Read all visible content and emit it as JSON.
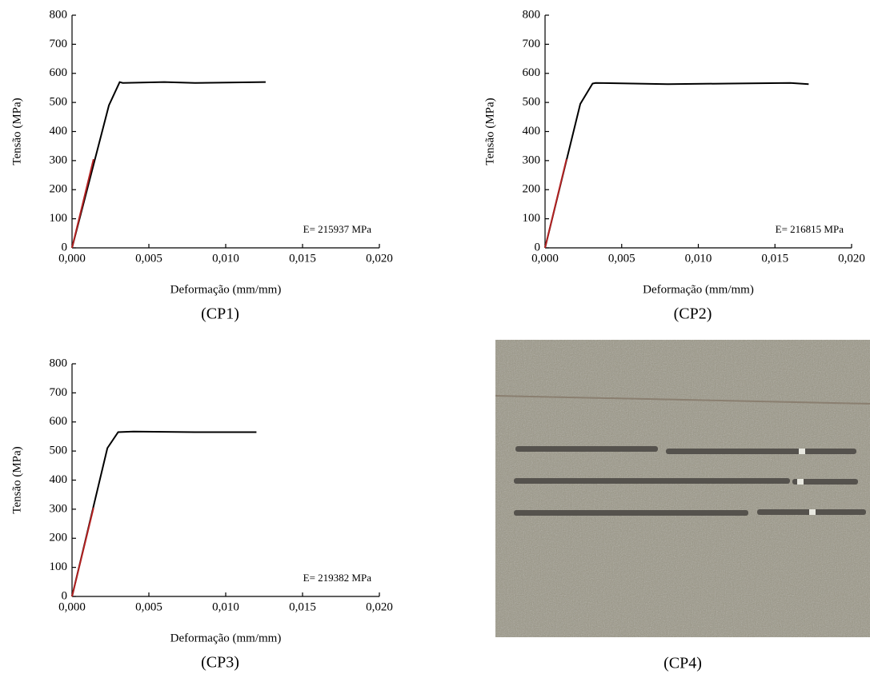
{
  "chart_data": [
    {
      "type": "line",
      "caption": "(CP1)",
      "xlabel": "Deformação (mm/mm)",
      "ylabel": "Tensão (MPa)",
      "annotation": "E= 215937 MPa",
      "xlim": [
        0,
        0.02
      ],
      "ylim": [
        0,
        800
      ],
      "xticks": [
        {
          "value": 0,
          "label": "0,000"
        },
        {
          "value": 0.005,
          "label": "0,005"
        },
        {
          "value": 0.01,
          "label": "0,010"
        },
        {
          "value": 0.015,
          "label": "0,015"
        },
        {
          "value": 0.02,
          "label": "0,020"
        }
      ],
      "yticks": [
        0,
        100,
        200,
        300,
        400,
        500,
        600,
        700,
        800
      ],
      "series": [
        {
          "color": "#000000",
          "x": [
            0,
            0.0024,
            0.0031,
            0.0033,
            0.006,
            0.008,
            0.0126
          ],
          "values": [
            0,
            490,
            570,
            567,
            570,
            567,
            570
          ]
        },
        {
          "color": "#b22222",
          "x": [
            0,
            0.0014
          ],
          "values": [
            0,
            305
          ]
        }
      ]
    },
    {
      "type": "line",
      "caption": "(CP2)",
      "xlabel": "Deformação (mm/mm)",
      "ylabel": "Tensão (MPa)",
      "annotation": "E= 216815 MPa",
      "xlim": [
        0,
        0.02
      ],
      "ylim": [
        0,
        800
      ],
      "xticks": [
        {
          "value": 0,
          "label": "0,000"
        },
        {
          "value": 0.005,
          "label": "0,005"
        },
        {
          "value": 0.01,
          "label": "0,010"
        },
        {
          "value": 0.015,
          "label": "0,015"
        },
        {
          "value": 0.02,
          "label": "0,020"
        }
      ],
      "yticks": [
        0,
        100,
        200,
        300,
        400,
        500,
        600,
        700,
        800
      ],
      "series": [
        {
          "color": "#000000",
          "x": [
            0,
            0.0023,
            0.0031,
            0.0033,
            0.008,
            0.012,
            0.016,
            0.0172
          ],
          "values": [
            0,
            495,
            565,
            567,
            563,
            565,
            567,
            563
          ]
        },
        {
          "color": "#b22222",
          "x": [
            0,
            0.0014
          ],
          "values": [
            0,
            305
          ]
        }
      ]
    },
    {
      "type": "line",
      "caption": "(CP3)",
      "xlabel": "Deformação (mm/mm)",
      "ylabel": "Tensão (MPa)",
      "annotation": "E= 219382 MPa",
      "xlim": [
        0,
        0.02
      ],
      "ylim": [
        0,
        800
      ],
      "xticks": [
        {
          "value": 0,
          "label": "0,000"
        },
        {
          "value": 0.005,
          "label": "0,005"
        },
        {
          "value": 0.01,
          "label": "0,010"
        },
        {
          "value": 0.015,
          "label": "0,015"
        },
        {
          "value": 0.02,
          "label": "0,020"
        }
      ],
      "yticks": [
        0,
        100,
        200,
        300,
        400,
        500,
        600,
        700,
        800
      ],
      "series": [
        {
          "color": "#000000",
          "x": [
            0,
            0.0023,
            0.003,
            0.004,
            0.008,
            0.012
          ],
          "values": [
            0,
            510,
            565,
            567,
            565,
            565
          ]
        },
        {
          "color": "#b22222",
          "x": [
            0,
            0.0014
          ],
          "values": [
            0,
            305
          ]
        }
      ]
    }
  ],
  "photo": {
    "caption": "(CP4)"
  }
}
